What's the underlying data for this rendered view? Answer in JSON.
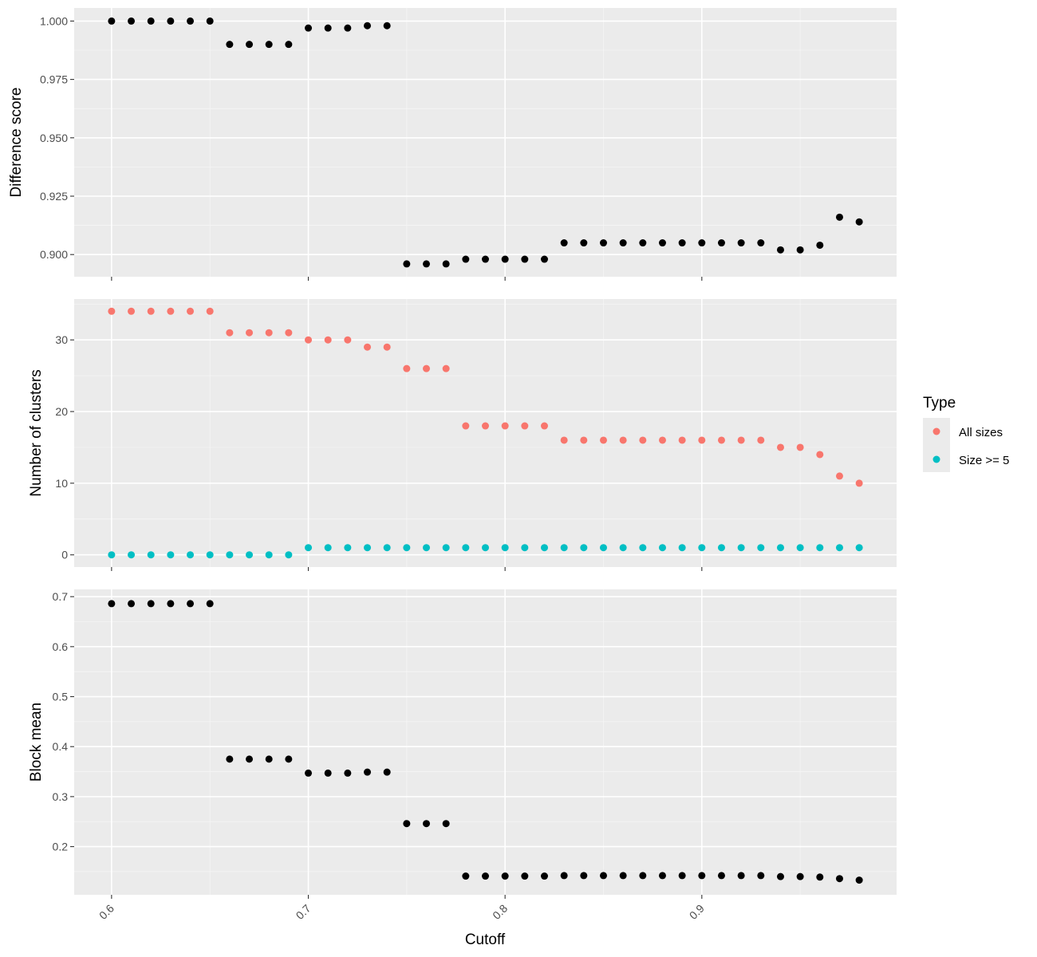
{
  "chart_data": {
    "type": "scatter",
    "x_label": "Cutoff",
    "x_ticks": [
      0.6,
      0.7,
      0.8,
      0.9
    ],
    "x_range": [
      0.581,
      0.999
    ],
    "x": [
      0.6,
      0.61,
      0.62,
      0.63,
      0.64,
      0.65,
      0.66,
      0.67,
      0.68,
      0.69,
      0.7,
      0.71,
      0.72,
      0.73,
      0.74,
      0.75,
      0.76,
      0.77,
      0.78,
      0.79,
      0.8,
      0.81,
      0.82,
      0.83,
      0.84,
      0.85,
      0.86,
      0.87,
      0.88,
      0.89,
      0.9,
      0.91,
      0.92,
      0.93,
      0.94,
      0.95,
      0.96,
      0.97,
      0.98
    ],
    "grid": true,
    "panels": [
      {
        "y_label": "Difference score",
        "y_range": [
          0.8905,
          1.0056
        ],
        "y_ticks": [
          "1.000",
          "0.975",
          "0.950",
          "0.925",
          "0.900"
        ],
        "y_tick_values": [
          1.0,
          0.975,
          0.95,
          0.925,
          0.9
        ],
        "series": [
          {
            "color": "#000000",
            "values": [
              1.0,
              1.0,
              1.0,
              1.0,
              1.0,
              1.0,
              0.99,
              0.99,
              0.99,
              0.99,
              0.997,
              0.997,
              0.997,
              0.998,
              0.998,
              0.896,
              0.896,
              0.896,
              0.898,
              0.898,
              0.898,
              0.898,
              0.898,
              0.905,
              0.905,
              0.905,
              0.905,
              0.905,
              0.905,
              0.905,
              0.905,
              0.905,
              0.905,
              0.905,
              0.902,
              0.902,
              0.904,
              0.916,
              0.914
            ]
          }
        ]
      },
      {
        "y_label": "Number of clusters",
        "y_range": [
          -1.7,
          35.7
        ],
        "y_ticks": [
          "30",
          "20",
          "10",
          "0"
        ],
        "y_tick_values": [
          30,
          20,
          10,
          0
        ],
        "series": [
          {
            "name": "All sizes",
            "color": "#F8766D",
            "values": [
              34,
              34,
              34,
              34,
              34,
              34,
              31,
              31,
              31,
              31,
              30,
              30,
              30,
              29,
              29,
              26,
              26,
              26,
              18,
              18,
              18,
              18,
              18,
              16,
              16,
              16,
              16,
              16,
              16,
              16,
              16,
              16,
              16,
              16,
              15,
              15,
              14,
              11,
              10
            ]
          },
          {
            "name": "Size >= 5",
            "color": "#00BFC4",
            "values": [
              0,
              0,
              0,
              0,
              0,
              0,
              0,
              0,
              0,
              0,
              1,
              1,
              1,
              1,
              1,
              1,
              1,
              1,
              1,
              1,
              1,
              1,
              1,
              1,
              1,
              1,
              1,
              1,
              1,
              1,
              1,
              1,
              1,
              1,
              1,
              1,
              1,
              1,
              1
            ]
          }
        ]
      },
      {
        "y_label": "Block mean",
        "y_range": [
          0.1036,
          0.7146
        ],
        "y_ticks": [
          "0.7",
          "0.6",
          "0.5",
          "0.4",
          "0.3",
          "0.2"
        ],
        "y_tick_values": [
          0.7,
          0.6,
          0.5,
          0.4,
          0.3,
          0.2
        ],
        "series": [
          {
            "color": "#000000",
            "values": [
              0.686,
              0.686,
              0.686,
              0.686,
              0.686,
              0.686,
              0.375,
              0.375,
              0.375,
              0.375,
              0.347,
              0.347,
              0.347,
              0.349,
              0.349,
              0.246,
              0.246,
              0.246,
              0.141,
              0.141,
              0.141,
              0.141,
              0.141,
              0.142,
              0.142,
              0.142,
              0.142,
              0.142,
              0.142,
              0.142,
              0.142,
              0.142,
              0.142,
              0.142,
              0.14,
              0.14,
              0.139,
              0.136,
              0.133
            ]
          }
        ]
      }
    ],
    "legend": {
      "title": "Type",
      "position": "right",
      "items": [
        {
          "label": "All sizes",
          "color": "#F8766D"
        },
        {
          "label": "Size >= 5",
          "color": "#00BFC4"
        }
      ]
    }
  }
}
